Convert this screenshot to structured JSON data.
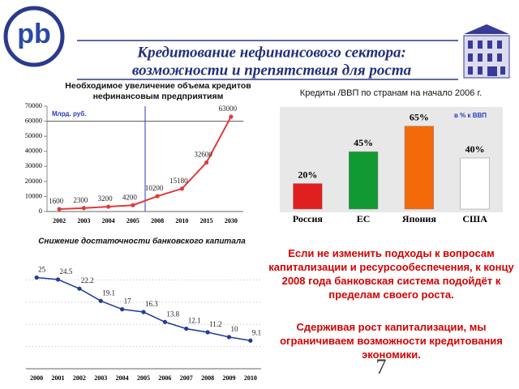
{
  "header": {
    "logo": "pb",
    "title": [
      "Кредитование нефинансового сектора:",
      "возможности и препятствия для роста"
    ]
  },
  "chart_data": [
    {
      "type": "line",
      "title": [
        "Необходимое увеличение объема кредитов",
        "нефинансовым предприятиям"
      ],
      "y_label": "Млрд. руб.",
      "categories": [
        "2002",
        "2003",
        "2004",
        "2005",
        "2008",
        "2010",
        "2015",
        "2030"
      ],
      "values": [
        1600,
        2300,
        3200,
        4200,
        10200,
        15180,
        32600,
        63000
      ],
      "color": "#e03a3a",
      "ylim": [
        0,
        70000
      ],
      "yticks": [
        0,
        10000,
        20000,
        30000,
        40000,
        50000,
        60000,
        70000
      ]
    },
    {
      "type": "bar",
      "title": [
        "Кредиты /ВВП по странам на начало 2006 г."
      ],
      "unit_note": "в % к ВВП",
      "categories": [
        "Россия",
        "ЕС",
        "Япония",
        "США"
      ],
      "values": [
        20,
        45,
        65,
        40
      ],
      "value_labels": [
        "20%",
        "45%",
        "65%",
        "40%"
      ],
      "colors": [
        "#e02020",
        "#119933",
        "#f26a0a",
        "#ffffff"
      ],
      "ylim": [
        0,
        80
      ]
    },
    {
      "type": "line",
      "title": [
        "Снижение достаточности банковского капитала"
      ],
      "categories": [
        "2000",
        "2001",
        "2002",
        "2003",
        "2004",
        "2005",
        "2006",
        "2007",
        "2008",
        "2009",
        "2010"
      ],
      "values": [
        25,
        24.5,
        22.2,
        19.1,
        17,
        16.3,
        13.8,
        12.1,
        11.2,
        10,
        9.1
      ],
      "color": "#1f3d99",
      "ylim": [
        2,
        30
      ]
    }
  ],
  "notes": [
    "Если не изменить подходы к вопросам капитализации и ресурсообеспечения, к концу 2008 года банковская система подойдёт к пределам своего роста.",
    "Сдерживая рост капитализации, мы ограничиваем возможности кредитования экономики."
  ],
  "page_number": "7"
}
